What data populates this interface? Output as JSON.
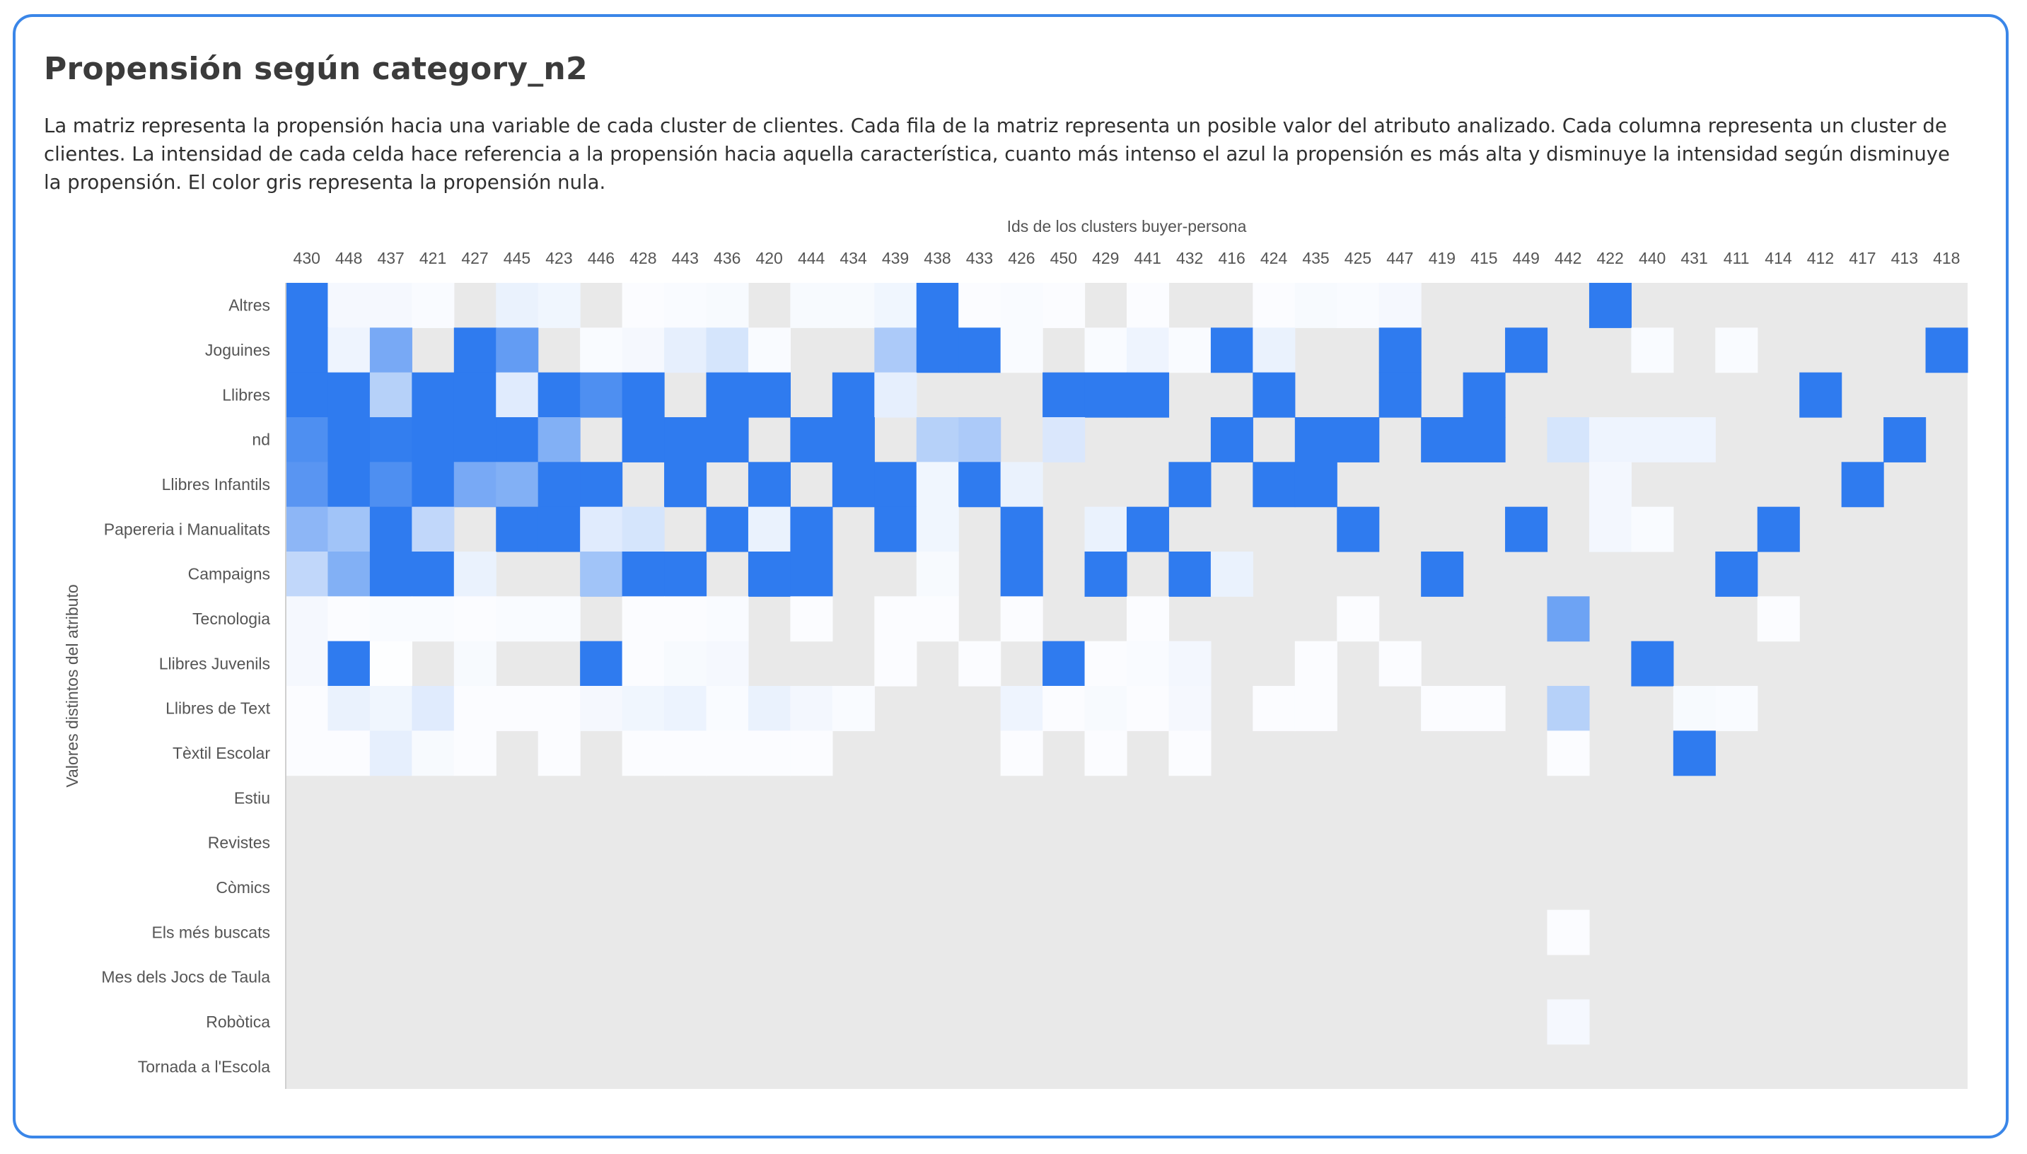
{
  "colors": {
    "border": "#3a86e8",
    "cell_full": "#2f7bef",
    "cell_zero": "#ffffff",
    "null_bg": "#e9e9e9",
    "text": "#3b3b3b"
  },
  "chart_data": {
    "type": "heatmap",
    "title": "Propensión según category_n2",
    "subtitle": "La matriz representa la propensión hacia una variable de cada cluster de clientes. Cada fila de la matriz representa un posible valor del atributo analizado. Cada columna representa un cluster de clientes. La intensidad de cada celda hace referencia a la propensión hacia aquella característica, cuanto más intenso el azul la propensión es más alta y disminuye la intensidad según disminuye la propensión. El color gris representa la propensión nula.",
    "xlabel": "Ids de los clusters buyer-persona",
    "ylabel": "Valores distintos del atributo",
    "x_axis_position": "top",
    "grid": false,
    "null_color_meaning": "gray = null propensity",
    "x": [
      "430",
      "448",
      "437",
      "421",
      "427",
      "445",
      "423",
      "446",
      "428",
      "443",
      "436",
      "420",
      "444",
      "434",
      "439",
      "438",
      "433",
      "426",
      "450",
      "429",
      "441",
      "432",
      "416",
      "424",
      "435",
      "425",
      "447",
      "419",
      "415",
      "449",
      "442",
      "422",
      "440",
      "431",
      "411",
      "414",
      "412",
      "417",
      "413",
      "418"
    ],
    "y": [
      "Altres",
      "Joguines",
      "Llibres",
      "nd",
      "Llibres Infantils",
      "Papereria i Manualitats",
      "Campaigns",
      "Tecnologia",
      "Llibres Juvenils",
      "Llibres de Text",
      "Tèxtil Escolar",
      "Estiu",
      "Revistes",
      "Còmics",
      "Els més buscats",
      "Mes dels Jocs de Taula",
      "Robòtica",
      "Tornada a l'Escola"
    ],
    "value_range": [
      0,
      1
    ],
    "values": [
      [
        1.0,
        0.05,
        0.05,
        0.03,
        null,
        0.1,
        0.07,
        null,
        0.02,
        0.03,
        0.04,
        null,
        0.04,
        0.04,
        0.07,
        1.0,
        0.02,
        0.03,
        0.02,
        null,
        0.02,
        null,
        null,
        0.02,
        0.04,
        0.03,
        0.05,
        null,
        null,
        null,
        null,
        1.0,
        null,
        null,
        null,
        null,
        null,
        null,
        null,
        null
      ],
      [
        1.0,
        0.08,
        0.65,
        null,
        1.0,
        0.75,
        null,
        0.03,
        0.05,
        0.12,
        0.2,
        0.03,
        null,
        null,
        0.4,
        1.0,
        1.0,
        0.03,
        null,
        0.03,
        0.08,
        0.03,
        1.0,
        0.1,
        null,
        null,
        1.0,
        null,
        null,
        1.0,
        null,
        null,
        0.03,
        null,
        0.03,
        null,
        null,
        null,
        null,
        1.0
      ],
      [
        1.0,
        1.0,
        0.35,
        1.0,
        1.0,
        0.15,
        1.0,
        0.85,
        1.0,
        null,
        1.0,
        1.0,
        null,
        1.0,
        0.12,
        null,
        null,
        null,
        1.0,
        1.0,
        1.0,
        null,
        null,
        1.0,
        null,
        null,
        1.0,
        null,
        1.0,
        null,
        null,
        null,
        null,
        null,
        null,
        null,
        1.0,
        null,
        null,
        null
      ],
      [
        0.85,
        1.0,
        0.98,
        1.0,
        1.0,
        1.0,
        0.6,
        null,
        1.0,
        1.0,
        1.0,
        null,
        1.0,
        1.0,
        null,
        0.35,
        0.4,
        null,
        0.18,
        null,
        null,
        null,
        1.0,
        null,
        1.0,
        1.0,
        null,
        1.0,
        1.0,
        null,
        0.2,
        0.08,
        0.08,
        0.08,
        null,
        null,
        null,
        null,
        1.0,
        null
      ],
      [
        0.8,
        1.0,
        0.85,
        1.0,
        0.65,
        0.6,
        1.0,
        1.0,
        null,
        1.0,
        null,
        1.0,
        null,
        1.0,
        1.0,
        0.07,
        1.0,
        0.1,
        null,
        null,
        null,
        1.0,
        null,
        1.0,
        1.0,
        null,
        null,
        null,
        null,
        null,
        null,
        0.06,
        null,
        null,
        null,
        null,
        null,
        1.0,
        null,
        null
      ],
      [
        0.55,
        0.45,
        1.0,
        0.3,
        null,
        1.0,
        1.0,
        0.15,
        0.2,
        null,
        1.0,
        0.1,
        1.0,
        null,
        1.0,
        0.07,
        null,
        1.0,
        null,
        0.1,
        1.0,
        null,
        null,
        null,
        null,
        1.0,
        null,
        null,
        null,
        1.0,
        null,
        0.06,
        0.03,
        null,
        null,
        1.0,
        null,
        null,
        null,
        null
      ],
      [
        0.3,
        0.6,
        1.0,
        1.0,
        0.1,
        null,
        null,
        0.45,
        1.0,
        1.0,
        null,
        1.0,
        1.0,
        null,
        null,
        0.04,
        null,
        1.0,
        null,
        1.0,
        null,
        1.0,
        0.1,
        null,
        null,
        null,
        null,
        1.0,
        null,
        null,
        null,
        null,
        null,
        null,
        1.0,
        null,
        null,
        null,
        null,
        null
      ],
      [
        0.05,
        0.02,
        0.03,
        0.03,
        0.02,
        0.03,
        0.03,
        null,
        0.02,
        0.02,
        0.03,
        null,
        0.02,
        null,
        0.02,
        0.02,
        null,
        0.02,
        null,
        null,
        0.02,
        null,
        null,
        null,
        null,
        0.02,
        null,
        null,
        null,
        null,
        0.7,
        null,
        null,
        null,
        null,
        0.02,
        null,
        null,
        null,
        null
      ],
      [
        0.05,
        1.0,
        0.01,
        null,
        0.04,
        null,
        null,
        1.0,
        0.02,
        0.04,
        0.05,
        null,
        null,
        null,
        0.02,
        null,
        0.02,
        null,
        1.0,
        0.02,
        0.03,
        0.06,
        null,
        null,
        0.02,
        null,
        0.02,
        null,
        null,
        null,
        null,
        null,
        1.0,
        null,
        null,
        null,
        null,
        null,
        null,
        null
      ],
      [
        0.02,
        0.1,
        0.07,
        0.15,
        0.02,
        0.02,
        0.02,
        0.05,
        0.07,
        0.09,
        0.03,
        0.1,
        0.06,
        0.03,
        null,
        null,
        null,
        0.08,
        0.02,
        0.04,
        0.02,
        0.05,
        null,
        0.02,
        0.02,
        null,
        null,
        0.02,
        0.02,
        null,
        0.35,
        null,
        null,
        0.04,
        0.03,
        null,
        null,
        null,
        null,
        null
      ],
      [
        0.02,
        0.02,
        0.12,
        0.04,
        0.02,
        null,
        0.02,
        null,
        0.02,
        0.02,
        0.02,
        0.02,
        0.02,
        null,
        null,
        null,
        null,
        0.02,
        null,
        0.02,
        null,
        0.02,
        null,
        null,
        null,
        null,
        null,
        null,
        null,
        null,
        0.02,
        null,
        null,
        1.0,
        null,
        null,
        null,
        null,
        null,
        null
      ],
      [
        null,
        null,
        null,
        null,
        null,
        null,
        null,
        null,
        null,
        null,
        null,
        null,
        null,
        null,
        null,
        null,
        null,
        null,
        null,
        null,
        null,
        null,
        null,
        null,
        null,
        null,
        null,
        null,
        null,
        null,
        null,
        null,
        null,
        null,
        null,
        null,
        null,
        null,
        null,
        null
      ],
      [
        null,
        null,
        null,
        null,
        null,
        null,
        null,
        null,
        null,
        null,
        null,
        null,
        null,
        null,
        null,
        null,
        null,
        null,
        null,
        null,
        null,
        null,
        null,
        null,
        null,
        null,
        null,
        null,
        null,
        null,
        null,
        null,
        null,
        null,
        null,
        null,
        null,
        null,
        null,
        null
      ],
      [
        null,
        null,
        null,
        null,
        null,
        null,
        null,
        null,
        null,
        null,
        null,
        null,
        null,
        null,
        null,
        null,
        null,
        null,
        null,
        null,
        null,
        null,
        null,
        null,
        null,
        null,
        null,
        null,
        null,
        null,
        null,
        null,
        null,
        null,
        null,
        null,
        null,
        null,
        null,
        null
      ],
      [
        null,
        null,
        null,
        null,
        null,
        null,
        null,
        null,
        null,
        null,
        null,
        null,
        null,
        null,
        null,
        null,
        null,
        null,
        null,
        null,
        null,
        null,
        null,
        null,
        null,
        null,
        null,
        null,
        null,
        null,
        0.02,
        null,
        null,
        null,
        null,
        null,
        null,
        null,
        null,
        null
      ],
      [
        null,
        null,
        null,
        null,
        null,
        null,
        null,
        null,
        null,
        null,
        null,
        null,
        null,
        null,
        null,
        null,
        null,
        null,
        null,
        null,
        null,
        null,
        null,
        null,
        null,
        null,
        null,
        null,
        null,
        null,
        null,
        null,
        null,
        null,
        null,
        null,
        null,
        null,
        null,
        null
      ],
      [
        null,
        null,
        null,
        null,
        null,
        null,
        null,
        null,
        null,
        null,
        null,
        null,
        null,
        null,
        null,
        null,
        null,
        null,
        null,
        null,
        null,
        null,
        null,
        null,
        null,
        null,
        null,
        null,
        null,
        null,
        0.05,
        null,
        null,
        null,
        null,
        null,
        null,
        null,
        null,
        null
      ],
      [
        null,
        null,
        null,
        null,
        null,
        null,
        null,
        null,
        null,
        null,
        null,
        null,
        null,
        null,
        null,
        null,
        null,
        null,
        null,
        null,
        null,
        null,
        null,
        null,
        null,
        null,
        null,
        null,
        null,
        null,
        null,
        null,
        null,
        null,
        null,
        null,
        null,
        null,
        null,
        null
      ]
    ]
  }
}
